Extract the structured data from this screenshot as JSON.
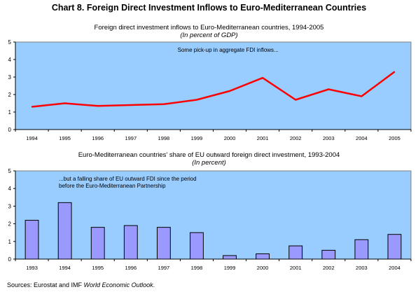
{
  "main_title": "Chart 8. Foreign Direct Investment Inflows to Euro-Mediterranean Countries",
  "source": {
    "prefix": "Sources: Eurostat and IMF ",
    "italic": "World Economic Outlook",
    "suffix": "."
  },
  "chart_data": [
    {
      "type": "line",
      "title": "Foreign direct investment inflows to Euro-Mediterranean countries, 1994-2005",
      "subtitle": "(In percent of GDP)",
      "annotation": "Some pick-up in aggregate FDI inflows...",
      "x": [
        "1994",
        "1995",
        "1996",
        "1997",
        "1998",
        "1999",
        "2000",
        "2001",
        "2002",
        "2003",
        "2004",
        "2005"
      ],
      "values": [
        1.3,
        1.5,
        1.35,
        1.4,
        1.45,
        1.7,
        2.2,
        2.95,
        1.7,
        2.3,
        1.9,
        3.3
      ],
      "ylim": [
        0,
        5
      ],
      "yticks": [
        "0",
        "1",
        "2",
        "3",
        "4",
        "5"
      ],
      "line_color": "#ff0000",
      "plot_background": "#99ccff",
      "grid": false,
      "legend": "none"
    },
    {
      "type": "bar",
      "title": "Euro-Mediterranean countries' share of EU outward foreign direct investment, 1993-2004",
      "subtitle": "(In percent)",
      "annotation_lines": [
        "...but a falling share of EU outward FDI since the period",
        "before the Euro-Mediterranean Partnership"
      ],
      "categories": [
        "1993",
        "1994",
        "1995",
        "1996",
        "1997",
        "1998",
        "1999",
        "2000",
        "2001",
        "2002",
        "2003",
        "2004"
      ],
      "values": [
        2.2,
        3.2,
        1.8,
        1.9,
        1.8,
        1.5,
        0.2,
        0.3,
        0.75,
        0.5,
        1.1,
        1.4
      ],
      "ylim": [
        0,
        5
      ],
      "yticks": [
        "0",
        "1",
        "2",
        "3",
        "4",
        "5"
      ],
      "bar_color": "#9999ff",
      "plot_background": "#99ccff",
      "grid": false,
      "legend": "none"
    }
  ]
}
